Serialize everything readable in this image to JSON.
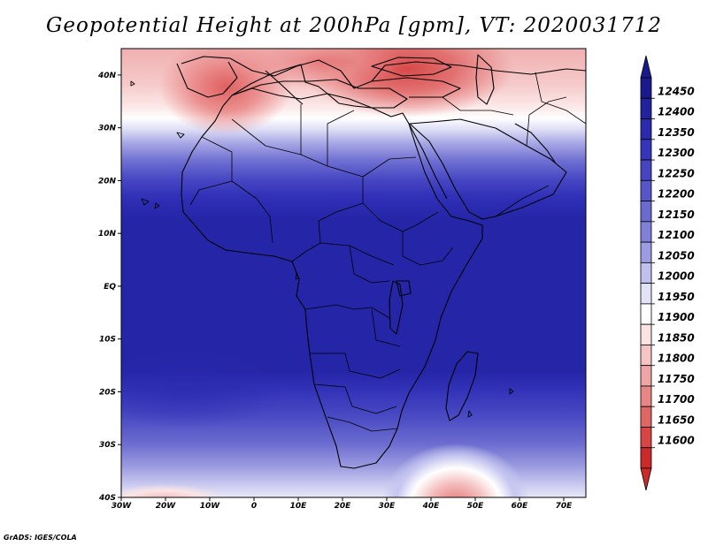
{
  "title": "Geopotential Height at 200hPa [gpm], VT: 2020031712",
  "credit": "GrADS: IGES/COLA",
  "map": {
    "lon_range": [
      -30,
      75
    ],
    "lat_range": [
      -40,
      45
    ],
    "x_ticks": [
      {
        "lon": -30,
        "label": "30W"
      },
      {
        "lon": -20,
        "label": "20W"
      },
      {
        "lon": -10,
        "label": "10W"
      },
      {
        "lon": 0,
        "label": "0"
      },
      {
        "lon": 10,
        "label": "10E"
      },
      {
        "lon": 20,
        "label": "20E"
      },
      {
        "lon": 30,
        "label": "30E"
      },
      {
        "lon": 40,
        "label": "40E"
      },
      {
        "lon": 50,
        "label": "50E"
      },
      {
        "lon": 60,
        "label": "60E"
      },
      {
        "lon": 70,
        "label": "70E"
      }
    ],
    "y_ticks": [
      {
        "lat": 40,
        "label": "40N"
      },
      {
        "lat": 30,
        "label": "30N"
      },
      {
        "lat": 20,
        "label": "20N"
      },
      {
        "lat": 10,
        "label": "10N"
      },
      {
        "lat": 0,
        "label": "EQ"
      },
      {
        "lat": -10,
        "label": "10S"
      },
      {
        "lat": -20,
        "label": "20S"
      },
      {
        "lat": -30,
        "label": "30S"
      },
      {
        "lat": -40,
        "label": "40S"
      }
    ]
  },
  "colorbar": {
    "levels": [
      12450,
      12400,
      12350,
      12300,
      12250,
      12200,
      12150,
      12100,
      12050,
      12000,
      11950,
      11900,
      11850,
      11800,
      11750,
      11700,
      11650,
      11600
    ],
    "colors": [
      "#1a1a8e",
      "#22229e",
      "#2a2aae",
      "#3535bb",
      "#4545c2",
      "#5656c8",
      "#6a6acf",
      "#8080d8",
      "#9c9ce2",
      "#c0c0ee",
      "#e2e2f8",
      "#ffffff",
      "#fce3e3",
      "#f6c4c4",
      "#efa5a5",
      "#e88585",
      "#e06565",
      "#d84545",
      "#cc2a2a"
    ]
  }
}
